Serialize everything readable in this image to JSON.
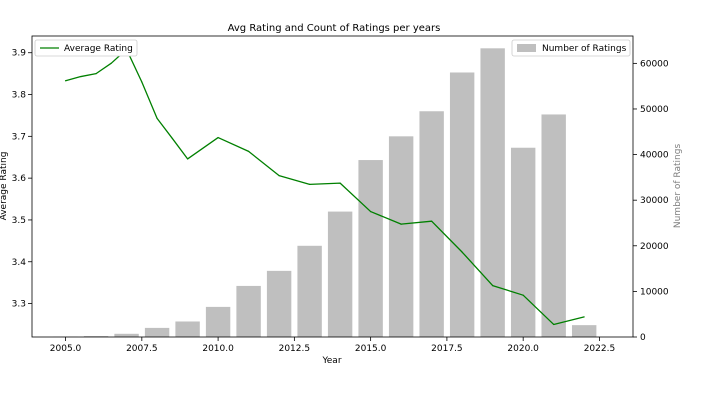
{
  "chart_data": {
    "type": "bar+line",
    "title": "Avg Rating and Count of Ratings per years",
    "xlabel": "Year",
    "ylabel_left": "Average Rating",
    "ylabel_right": "Number of Ratings",
    "xlim": [
      2003.9,
      2023.6
    ],
    "ylim_left": [
      3.22,
      3.94
    ],
    "ylim_right": [
      0,
      66000
    ],
    "x_ticks": [
      2005.0,
      2007.5,
      2010.0,
      2012.5,
      2015.0,
      2017.5,
      2020.0,
      2022.5
    ],
    "x_tick_labels": [
      "2005.0",
      "2007.5",
      "2010.0",
      "2012.5",
      "2015.0",
      "2017.5",
      "2020.0",
      "2022.5"
    ],
    "y_left_ticks": [
      3.3,
      3.4,
      3.5,
      3.6,
      3.7,
      3.8,
      3.9
    ],
    "y_left_tick_labels": [
      "3.3",
      "3.4",
      "3.5",
      "3.6",
      "3.7",
      "3.8",
      "3.9"
    ],
    "y_right_ticks": [
      0,
      10000,
      20000,
      30000,
      40000,
      50000,
      60000
    ],
    "y_right_tick_labels": [
      "0",
      "10000",
      "20000",
      "30000",
      "40000",
      "50000",
      "60000"
    ],
    "bars": {
      "name": "Number of Ratings",
      "color": "#bfbfbf",
      "x": [
        2005,
        2006,
        2007,
        2008,
        2009,
        2010,
        2011,
        2012,
        2013,
        2014,
        2015,
        2016,
        2017,
        2018,
        2019,
        2020,
        2021,
        2022
      ],
      "values": [
        50,
        200,
        700,
        2000,
        3400,
        6600,
        11200,
        14500,
        20000,
        27500,
        38800,
        44000,
        49500,
        58000,
        63300,
        41500,
        48800,
        2600
      ]
    },
    "line": {
      "name": "Average Rating",
      "color": "#008000",
      "x": [
        2005,
        2005.5,
        2006,
        2006.5,
        2007,
        2007.5,
        2008,
        2008.5,
        2009,
        2010,
        2011,
        2012,
        2013,
        2014,
        2015,
        2016,
        2017,
        2018,
        2019,
        2020,
        2021,
        2022
      ],
      "values": [
        3.833,
        3.843,
        3.85,
        3.875,
        3.908,
        3.83,
        3.743,
        3.695,
        3.646,
        3.697,
        3.664,
        3.606,
        3.585,
        3.588,
        3.52,
        3.49,
        3.497,
        3.423,
        3.343,
        3.32,
        3.25,
        3.268
      ]
    },
    "legend": {
      "left": {
        "placement": "top-left",
        "label": "Average Rating"
      },
      "right": {
        "placement": "top-right",
        "label": "Number of Ratings"
      }
    },
    "grid": false
  }
}
